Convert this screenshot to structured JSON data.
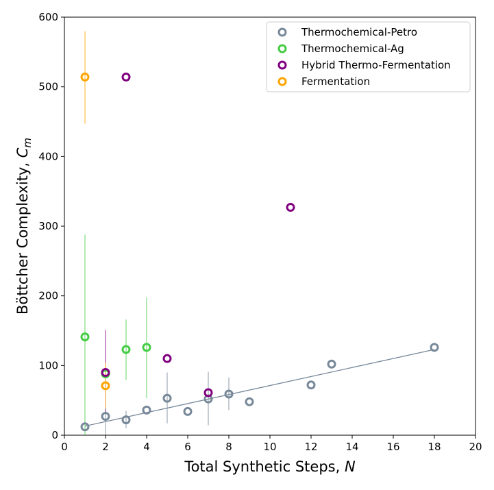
{
  "chart_data": {
    "type": "scatter",
    "xlabel": "Total Synthetic Steps, ",
    "xlabel_var": "N",
    "ylabel": "Böttcher Complexity, ",
    "ylabel_var": "C",
    "ylabel_sub": "m",
    "xlim": [
      0,
      20
    ],
    "ylim": [
      0,
      600
    ],
    "xticks": [
      0,
      2,
      4,
      6,
      8,
      10,
      12,
      14,
      16,
      18,
      20
    ],
    "yticks": [
      0,
      100,
      200,
      300,
      400,
      500,
      600
    ],
    "grid": false,
    "legend_position": "top-right",
    "series": [
      {
        "name": "Thermochemical-Petro",
        "color": "#778899",
        "points": [
          {
            "x": 1,
            "y": 12
          },
          {
            "x": 2,
            "y": 27,
            "err": [
              0,
              96
            ]
          },
          {
            "x": 3,
            "y": 22,
            "err": [
              10,
              35
            ]
          },
          {
            "x": 4,
            "y": 36
          },
          {
            "x": 5,
            "y": 53,
            "err": [
              17,
              90
            ]
          },
          {
            "x": 6,
            "y": 34
          },
          {
            "x": 7,
            "y": 52,
            "err": [
              14,
              91
            ]
          },
          {
            "x": 8,
            "y": 59,
            "err": [
              36,
              83
            ]
          },
          {
            "x": 9,
            "y": 48
          },
          {
            "x": 12,
            "y": 72
          },
          {
            "x": 13,
            "y": 102
          },
          {
            "x": 18,
            "y": 126
          }
        ],
        "fit_line": {
          "x": [
            1,
            18
          ],
          "y": [
            13,
            123
          ]
        }
      },
      {
        "name": "Thermochemical-Ag",
        "color": "#44cc44",
        "points": [
          {
            "x": 1,
            "y": 141,
            "err": [
              0,
              288
            ]
          },
          {
            "x": 2,
            "y": 88
          },
          {
            "x": 3,
            "y": 123,
            "err": [
              79,
              166
            ]
          },
          {
            "x": 4,
            "y": 126,
            "err": [
              53,
              198
            ]
          }
        ]
      },
      {
        "name": "Hybrid Thermo-Fermentation",
        "color": "#800080",
        "points": [
          {
            "x": 2,
            "y": 90,
            "err": [
              30,
              151
            ]
          },
          {
            "x": 3,
            "y": 514
          },
          {
            "x": 5,
            "y": 110
          },
          {
            "x": 7,
            "y": 61
          },
          {
            "x": 11,
            "y": 327
          }
        ]
      },
      {
        "name": "Fermentation",
        "color": "#ffa500",
        "points": [
          {
            "x": 1,
            "y": 514,
            "err": [
              447,
              580
            ]
          },
          {
            "x": 2,
            "y": 71,
            "err": [
              38,
              104
            ]
          }
        ]
      }
    ]
  }
}
